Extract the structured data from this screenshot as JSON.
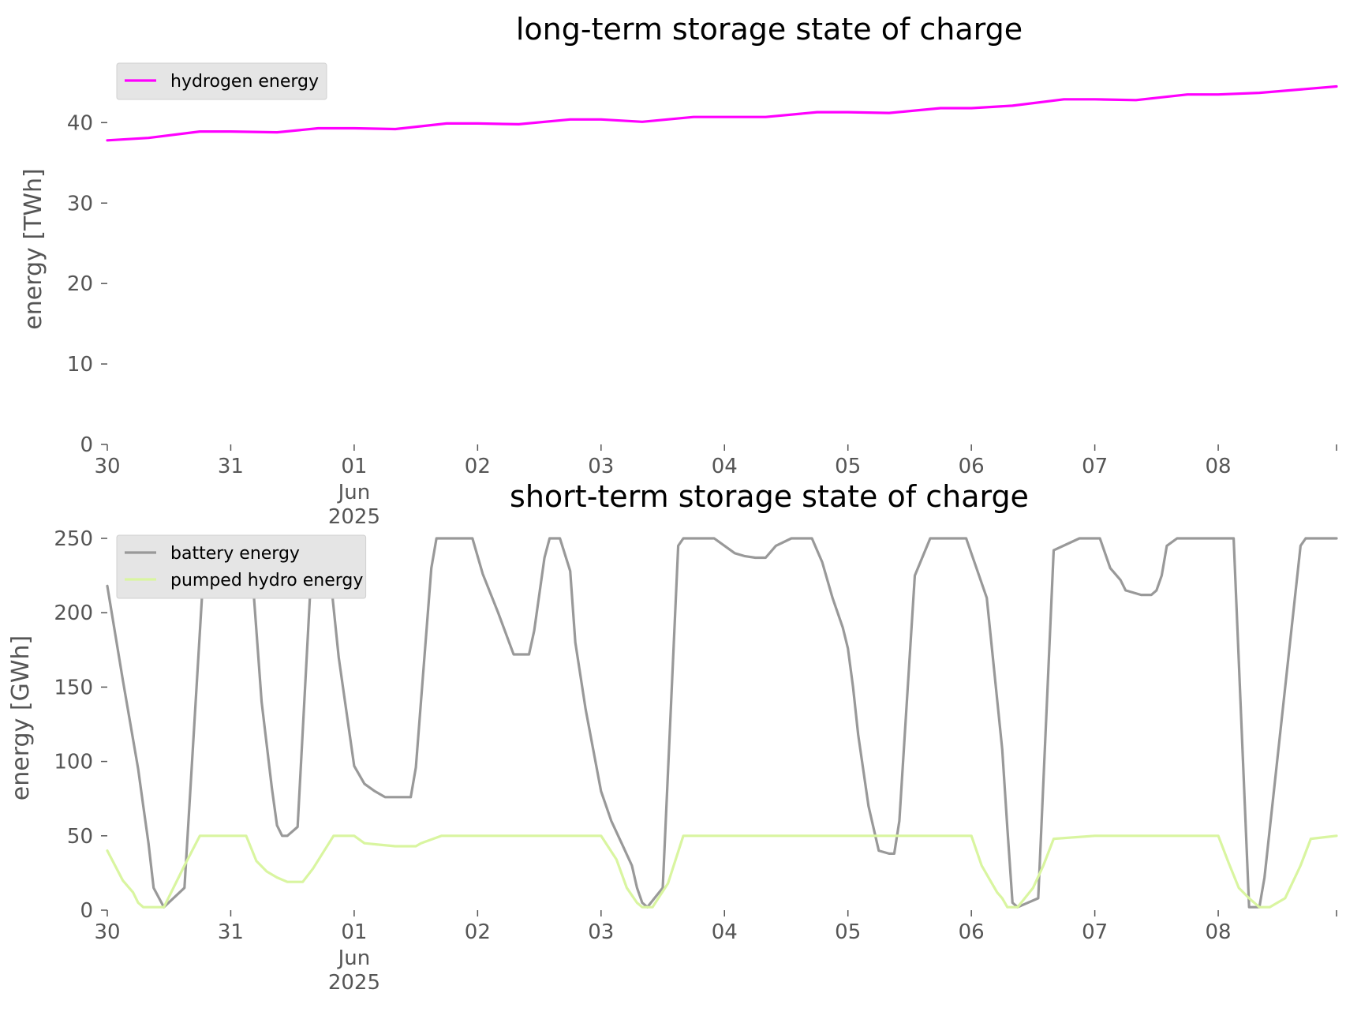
{
  "chart_data": [
    {
      "type": "line",
      "title": "long-term storage state of charge",
      "ylabel": "energy [TWh]",
      "xlabel": "",
      "x_range": [
        "2025-05-30",
        "2025-06-08T23:00"
      ],
      "xticks": [
        "2025-05-30",
        "2025-05-31",
        "2025-06-01",
        "2025-06-02",
        "2025-06-03",
        "2025-06-04",
        "2025-06-05",
        "2025-06-06",
        "2025-06-07",
        "2025-06-08"
      ],
      "xtick_labels": [
        "30",
        "31",
        "01",
        "02",
        "03",
        "04",
        "05",
        "06",
        "07",
        "08"
      ],
      "xtick_sublabel": {
        "month": "Jun",
        "year": "2025"
      },
      "ylim": [
        0,
        47
      ],
      "yticks": [
        0,
        10,
        20,
        30,
        40
      ],
      "grid": false,
      "legend_position": "top-left",
      "series": [
        {
          "name": "hydrogen energy",
          "color": "#ff00ff",
          "x": [
            "2025-05-30T00:00",
            "2025-05-30T08:00",
            "2025-05-30T18:00",
            "2025-05-31T00:00",
            "2025-05-31T09:00",
            "2025-05-31T17:00",
            "2025-06-01T00:00",
            "2025-06-01T08:00",
            "2025-06-01T18:00",
            "2025-06-02T00:00",
            "2025-06-02T08:00",
            "2025-06-02T18:00",
            "2025-06-03T00:00",
            "2025-06-03T08:00",
            "2025-06-03T18:00",
            "2025-06-04T00:00",
            "2025-06-04T08:00",
            "2025-06-04T18:00",
            "2025-06-05T00:00",
            "2025-06-05T08:00",
            "2025-06-05T18:00",
            "2025-06-06T00:00",
            "2025-06-06T08:00",
            "2025-06-06T18:00",
            "2025-06-07T00:00",
            "2025-06-07T08:00",
            "2025-06-07T18:00",
            "2025-06-08T00:00",
            "2025-06-08T08:00",
            "2025-06-08T23:00"
          ],
          "values": [
            37.8,
            38.1,
            38.9,
            38.9,
            38.8,
            39.3,
            39.3,
            39.2,
            39.9,
            39.9,
            39.8,
            40.4,
            40.4,
            40.1,
            40.7,
            40.7,
            40.7,
            41.3,
            41.3,
            41.2,
            41.8,
            41.8,
            42.1,
            42.9,
            42.9,
            42.8,
            43.5,
            43.5,
            43.7,
            44.5
          ]
        }
      ]
    },
    {
      "type": "line",
      "title": "short-term storage state of charge",
      "ylabel": "energy [GWh]",
      "xlabel": "",
      "x_range": [
        "2025-05-30",
        "2025-06-08T23:00"
      ],
      "xticks": [
        "2025-05-30",
        "2025-05-31",
        "2025-06-01",
        "2025-06-02",
        "2025-06-03",
        "2025-06-04",
        "2025-06-05",
        "2025-06-06",
        "2025-06-07",
        "2025-06-08"
      ],
      "xtick_labels": [
        "30",
        "31",
        "01",
        "02",
        "03",
        "04",
        "05",
        "06",
        "07",
        "08"
      ],
      "xtick_sublabel": {
        "month": "Jun",
        "year": "2025"
      },
      "ylim": [
        0,
        250
      ],
      "yticks": [
        0,
        50,
        100,
        150,
        200,
        250
      ],
      "grid": false,
      "legend_position": "top-left",
      "series": [
        {
          "name": "battery energy",
          "color": "#999999",
          "x": [
            "2025-05-30T00:00",
            "2025-05-30T03:00",
            "2025-05-30T06:00",
            "2025-05-30T07:00",
            "2025-05-30T08:00",
            "2025-05-30T09:00",
            "2025-05-30T11:00",
            "2025-05-30T15:00",
            "2025-05-30T19:00",
            "2025-05-31T00:00",
            "2025-05-31T04:00",
            "2025-05-31T06:00",
            "2025-05-31T08:00",
            "2025-05-31T09:00",
            "2025-05-31T10:00",
            "2025-05-31T11:00",
            "2025-05-31T13:00",
            "2025-05-31T16:00",
            "2025-05-31T17:00",
            "2025-05-31T19:00",
            "2025-05-31T21:00",
            "2025-06-01T00:00",
            "2025-06-01T02:00",
            "2025-06-01T04:00",
            "2025-06-01T06:00",
            "2025-06-01T09:00",
            "2025-06-01T11:00",
            "2025-06-01T12:00",
            "2025-06-01T15:00",
            "2025-06-01T16:00",
            "2025-06-01T19:00",
            "2025-06-01T23:00",
            "2025-06-02T01:00",
            "2025-06-02T04:00",
            "2025-06-02T07:00",
            "2025-06-02T10:00",
            "2025-06-02T11:00",
            "2025-06-02T13:00",
            "2025-06-02T14:00",
            "2025-06-02T15:00",
            "2025-06-02T16:00",
            "2025-06-02T18:00",
            "2025-06-02T19:00",
            "2025-06-02T21:00",
            "2025-06-03T00:00",
            "2025-06-03T02:00",
            "2025-06-03T04:00",
            "2025-06-03T06:00",
            "2025-06-03T07:00",
            "2025-06-03T08:00",
            "2025-06-03T09:00",
            "2025-06-03T12:00",
            "2025-06-03T15:00",
            "2025-06-03T16:00",
            "2025-06-03T22:00",
            "2025-06-04T00:00",
            "2025-06-04T02:00",
            "2025-06-04T04:00",
            "2025-06-04T06:00",
            "2025-06-04T08:00",
            "2025-06-04T10:00",
            "2025-06-04T13:00",
            "2025-06-04T17:00",
            "2025-06-04T19:00",
            "2025-06-04T21:00",
            "2025-06-04T23:00",
            "2025-06-05T00:00",
            "2025-06-05T01:00",
            "2025-06-05T02:00",
            "2025-06-05T04:00",
            "2025-06-05T06:00",
            "2025-06-05T08:00",
            "2025-06-05T09:00",
            "2025-06-05T10:00",
            "2025-06-05T11:00",
            "2025-06-05T13:00",
            "2025-06-05T16:00",
            "2025-06-05T22:00",
            "2025-06-05T23:00",
            "2025-06-06T03:00",
            "2025-06-06T06:00",
            "2025-06-06T07:00",
            "2025-06-06T08:00",
            "2025-06-06T09:00",
            "2025-06-06T13:00",
            "2025-06-06T16:00",
            "2025-06-06T21:00",
            "2025-06-07T00:00",
            "2025-06-07T01:00",
            "2025-06-07T03:00",
            "2025-06-07T05:00",
            "2025-06-07T06:00",
            "2025-06-07T09:00",
            "2025-06-07T10:00",
            "2025-06-07T11:00",
            "2025-06-07T12:00",
            "2025-06-07T13:00",
            "2025-06-07T14:00",
            "2025-06-07T16:00",
            "2025-06-07T22:00",
            "2025-06-08T03:00",
            "2025-06-08T06:00",
            "2025-06-08T07:00",
            "2025-06-08T08:00",
            "2025-06-08T09:00",
            "2025-06-08T16:00",
            "2025-06-08T17:00",
            "2025-06-08T23:00"
          ],
          "values": [
            218,
            155,
            95,
            70,
            45,
            15,
            2,
            15,
            245,
            250,
            235,
            140,
            82,
            57,
            50,
            50,
            56,
            250,
            250,
            237,
            170,
            97,
            85,
            80,
            76,
            76,
            76,
            96,
            230,
            250,
            250,
            250,
            226,
            200,
            172,
            172,
            188,
            237,
            250,
            250,
            250,
            228,
            180,
            135,
            80,
            60,
            45,
            30,
            15,
            5,
            2,
            15,
            245,
            250,
            250,
            245,
            240,
            238,
            237,
            237,
            245,
            250,
            250,
            234,
            210,
            190,
            176,
            150,
            118,
            70,
            40,
            38,
            38,
            60,
            115,
            225,
            250,
            250,
            250,
            210,
            108,
            55,
            5,
            2,
            8,
            242,
            250,
            250,
            250,
            230,
            222,
            215,
            212,
            212,
            212,
            215,
            225,
            245,
            250,
            250,
            250,
            2,
            2,
            2,
            22,
            245,
            250,
            250
          ]
        },
        {
          "name": "pumped hydro energy",
          "color": "#d9f5a0",
          "x": [
            "2025-05-30T00:00",
            "2025-05-30T03:00",
            "2025-05-30T05:00",
            "2025-05-30T06:00",
            "2025-05-30T07:00",
            "2025-05-30T08:00",
            "2025-05-30T09:00",
            "2025-05-30T10:00",
            "2025-05-30T11:00",
            "2025-05-30T15:00",
            "2025-05-30T18:00",
            "2025-05-31T00:00",
            "2025-05-31T03:00",
            "2025-05-31T05:00",
            "2025-05-31T07:00",
            "2025-05-31T09:00",
            "2025-05-31T11:00",
            "2025-05-31T13:00",
            "2025-05-31T14:00",
            "2025-05-31T16:00",
            "2025-05-31T20:00",
            "2025-06-01T00:00",
            "2025-06-01T02:00",
            "2025-06-01T05:00",
            "2025-06-01T08:00",
            "2025-06-01T10:00",
            "2025-06-01T11:00",
            "2025-06-01T12:00",
            "2025-06-01T13:00",
            "2025-06-01T17:00",
            "2025-06-02T00:00",
            "2025-06-03T00:00",
            "2025-06-03T03:00",
            "2025-06-03T05:00",
            "2025-06-03T06:00",
            "2025-06-03T07:00",
            "2025-06-03T08:00",
            "2025-06-03T09:00",
            "2025-06-03T10:00",
            "2025-06-03T13:00",
            "2025-06-03T16:00",
            "2025-06-04T00:00",
            "2025-06-05T00:00",
            "2025-06-06T00:00",
            "2025-06-06T02:00",
            "2025-06-06T04:00",
            "2025-06-06T05:00",
            "2025-06-06T06:00",
            "2025-06-06T07:00",
            "2025-06-06T08:00",
            "2025-06-06T09:00",
            "2025-06-06T12:00",
            "2025-06-06T14:00",
            "2025-06-06T16:00",
            "2025-06-07T00:00",
            "2025-06-07T12:00",
            "2025-06-08T00:00",
            "2025-06-08T02:00",
            "2025-06-08T04:00",
            "2025-06-08T06:00",
            "2025-06-08T07:00",
            "2025-06-08T08:00",
            "2025-06-08T09:00",
            "2025-06-08T10:00",
            "2025-06-08T13:00",
            "2025-06-08T16:00",
            "2025-06-08T18:00",
            "2025-06-08T23:00"
          ],
          "values": [
            40,
            20,
            12,
            5,
            2,
            2,
            2,
            2,
            2,
            30,
            50,
            50,
            50,
            33,
            26,
            22,
            19,
            19,
            19,
            28,
            50,
            50,
            45,
            44,
            43,
            43,
            43,
            43,
            45,
            50,
            50,
            50,
            34,
            15,
            10,
            5,
            2,
            2,
            2,
            18,
            50,
            50,
            50,
            50,
            30,
            18,
            12,
            8,
            2,
            2,
            2,
            15,
            30,
            48,
            50,
            50,
            50,
            32,
            15,
            8,
            5,
            2,
            2,
            2,
            8,
            30,
            48,
            50
          ]
        }
      ]
    }
  ]
}
